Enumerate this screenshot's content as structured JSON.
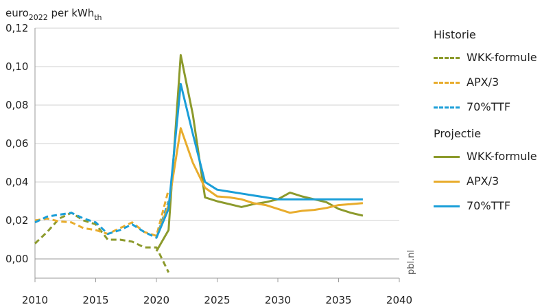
{
  "chart_data": {
    "type": "line",
    "unit_label": {
      "base": "euro",
      "sub": "2022",
      "mid": " per kWh",
      "sub2": "th"
    },
    "credit": "pbl.nl",
    "xlim": [
      2010,
      2040
    ],
    "ylim": [
      -0.01,
      0.12
    ],
    "x_ticks": [
      2010,
      2015,
      2020,
      2025,
      2030,
      2035,
      2040
    ],
    "x_tick_labels": [
      "2010",
      "2015",
      "2020",
      "2025",
      "2030",
      "2035",
      "2040"
    ],
    "y_ticks": [
      0.0,
      0.02,
      0.04,
      0.06,
      0.08,
      0.1,
      0.12
    ],
    "y_tick_labels": [
      "0,00",
      "0,02",
      "0,04",
      "0,06",
      "0,08",
      "0,10",
      "0,12"
    ],
    "grid": "horizontal",
    "legend_position": "right",
    "colors": {
      "wkk": "#8c9a2c",
      "apx": "#e8ac2c",
      "ttf": "#1a9ed8"
    },
    "groups": [
      {
        "title": "Historie",
        "series": [
          {
            "name": "WKK-formule",
            "style": "dashed",
            "color": "#8c9a2c",
            "x": [
              2010,
              2011,
              2012,
              2013,
              2014,
              2015,
              2016,
              2017,
              2018,
              2019,
              2020,
              2021
            ],
            "y": [
              0.008,
              0.014,
              0.021,
              0.024,
              0.02,
              0.018,
              0.01,
              0.01,
              0.009,
              0.006,
              0.006,
              -0.007
            ]
          },
          {
            "name": "APX/3",
            "style": "dashed",
            "color": "#e8ac2c",
            "x": [
              2010,
              2011,
              2012,
              2013,
              2014,
              2015,
              2016,
              2017,
              2018,
              2019,
              2020,
              2021
            ],
            "y": [
              0.02,
              0.021,
              0.0195,
              0.019,
              0.016,
              0.015,
              0.013,
              0.016,
              0.019,
              0.014,
              0.012,
              0.036
            ]
          },
          {
            "name": "70%TTF",
            "style": "dashed",
            "color": "#1a9ed8",
            "x": [
              2010,
              2011,
              2012,
              2013,
              2014,
              2015,
              2016,
              2017,
              2018,
              2019,
              2020,
              2021
            ],
            "y": [
              0.019,
              0.022,
              0.023,
              0.024,
              0.021,
              0.019,
              0.013,
              0.015,
              0.018,
              0.014,
              0.011,
              0.03
            ]
          }
        ]
      },
      {
        "title": "Projectie",
        "series": [
          {
            "name": "WKK-formule",
            "style": "solid",
            "color": "#8c9a2c",
            "x": [
              2020,
              2021,
              2022,
              2023,
              2024,
              2025,
              2026,
              2027,
              2028,
              2029,
              2030,
              2031,
              2032,
              2033,
              2034,
              2035,
              2036,
              2037
            ],
            "y": [
              0.004,
              0.015,
              0.106,
              0.075,
              0.032,
              0.03,
              0.0285,
              0.027,
              0.0285,
              0.0295,
              0.031,
              0.0345,
              0.0325,
              0.031,
              0.0295,
              0.026,
              0.024,
              0.0225
            ]
          },
          {
            "name": "APX/3",
            "style": "solid",
            "color": "#e8ac2c",
            "x": [
              2020,
              2021,
              2022,
              2023,
              2024,
              2025,
              2026,
              2027,
              2028,
              2029,
              2030,
              2031,
              2032,
              2033,
              2034,
              2035,
              2036,
              2037
            ],
            "y": [
              0.011,
              0.028,
              0.068,
              0.05,
              0.037,
              0.0325,
              0.032,
              0.031,
              0.029,
              0.028,
              0.026,
              0.024,
              0.025,
              0.0255,
              0.0265,
              0.028,
              0.0285,
              0.029
            ]
          },
          {
            "name": "70%TTF",
            "style": "solid",
            "color": "#1a9ed8",
            "x": [
              2020,
              2021,
              2022,
              2023,
              2024,
              2025,
              2026,
              2027,
              2028,
              2029,
              2030,
              2031,
              2032,
              2033,
              2034,
              2035,
              2036,
              2037
            ],
            "y": [
              0.011,
              0.026,
              0.091,
              0.065,
              0.04,
              0.036,
              0.035,
              0.034,
              0.033,
              0.032,
              0.031,
              0.031,
              0.031,
              0.031,
              0.031,
              0.031,
              0.031,
              0.031
            ]
          }
        ]
      }
    ]
  }
}
